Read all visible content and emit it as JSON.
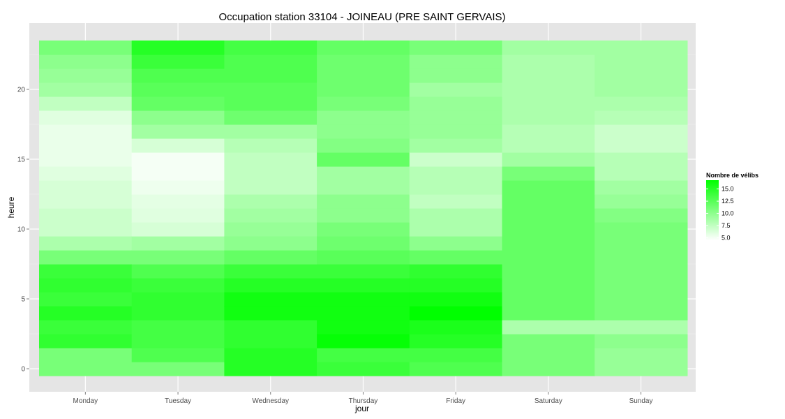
{
  "chart_data": {
    "type": "heatmap",
    "title": "Occupation station 33104 - JOINEAU (PRE SAINT GERVAIS)",
    "xlabel": "jour",
    "ylabel": "heure",
    "x": [
      "Monday",
      "Tuesday",
      "Wednesday",
      "Thursday",
      "Friday",
      "Saturday",
      "Sunday"
    ],
    "y": [
      0,
      1,
      2,
      3,
      4,
      5,
      6,
      7,
      8,
      9,
      10,
      11,
      12,
      13,
      14,
      15,
      16,
      17,
      18,
      19,
      20,
      21,
      22,
      23
    ],
    "y_ticks": [
      0,
      5,
      10,
      15,
      20
    ],
    "ylim": [
      -0.5,
      23.5
    ],
    "grid": true,
    "colorscale": {
      "low": "#ffffff",
      "high": "#00ff00",
      "min": 4.5,
      "max": 16.8
    },
    "legend": {
      "title": "Nombre de vélibs",
      "ticks": [
        "15.0",
        "12.5",
        "10.0",
        "7.5",
        "5.0"
      ],
      "tick_values": [
        15,
        12.5,
        10,
        7.5,
        5
      ],
      "position": "right"
    },
    "values": [
      [
        11,
        11,
        14.5,
        14,
        15,
        14,
        14.5,
        14,
        11,
        8.5,
        7,
        7,
        6.5,
        6.5,
        6,
        5.5,
        5.5,
        5.5,
        6,
        7.5,
        9,
        9.5,
        10,
        11
      ],
      [
        11,
        13,
        13.5,
        13.5,
        14.5,
        14.5,
        14,
        13,
        11,
        9,
        6.5,
        6,
        5.8,
        5.3,
        5,
        5,
        6.5,
        9,
        10,
        12,
        12.5,
        13,
        14,
        15
      ],
      [
        15,
        15,
        14.5,
        14.5,
        16,
        16,
        15,
        14,
        12,
        10,
        9.5,
        9,
        8.5,
        7.5,
        7.5,
        7.5,
        8,
        9,
        11.5,
        12.5,
        12.5,
        13,
        13,
        13.5
      ],
      [
        14,
        13.5,
        16.5,
        16,
        16,
        16,
        15,
        14,
        12.5,
        11.5,
        11,
        10,
        10,
        9,
        9,
        12,
        10.5,
        10,
        10,
        11,
        11.5,
        11.5,
        11.5,
        12
      ],
      [
        13,
        13.5,
        15,
        15.5,
        16.8,
        16,
        15,
        14.5,
        12,
        10,
        8.5,
        8.5,
        7.5,
        8,
        8,
        7,
        9,
        9.5,
        9.5,
        9.5,
        9,
        10,
        10,
        11
      ],
      [
        11,
        11,
        11,
        8.5,
        12,
        12,
        12,
        12,
        12,
        12,
        12,
        12,
        12,
        12,
        11,
        9,
        8,
        8,
        8.5,
        8.5,
        8.5,
        8.5,
        8.5,
        9
      ],
      [
        9.5,
        9.5,
        10,
        8.5,
        11,
        11,
        11,
        11,
        11,
        11,
        11,
        10.5,
        9.5,
        9,
        8,
        8,
        7,
        7,
        8,
        8.5,
        9,
        9,
        9,
        9
      ]
    ]
  }
}
